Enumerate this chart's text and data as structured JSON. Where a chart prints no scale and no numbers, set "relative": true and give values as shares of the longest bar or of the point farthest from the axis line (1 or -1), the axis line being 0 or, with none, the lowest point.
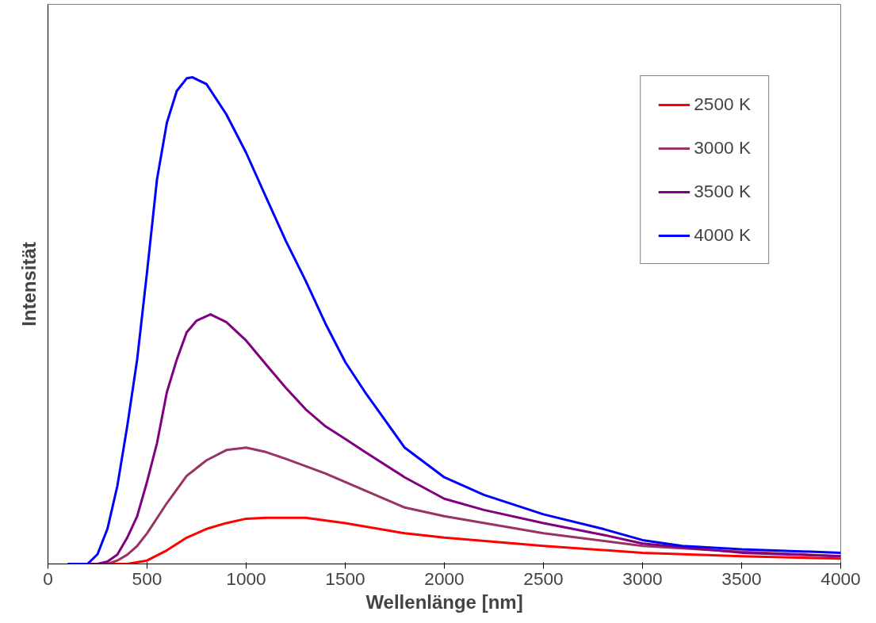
{
  "chart_data": {
    "type": "line",
    "relative": true,
    "xlabel": "Wellenlänge [nm]",
    "ylabel": "Intensität",
    "xlim": [
      0,
      4000
    ],
    "xticks": [
      0,
      500,
      1000,
      1500,
      2000,
      2500,
      3000,
      3500,
      4000
    ],
    "grid": false,
    "legend": "top right",
    "marker": "none",
    "line_style": "solid",
    "series": [
      {
        "name": "2500 K",
        "color": "#ff0000",
        "x": [
          100,
          400,
          500,
          600,
          700,
          800,
          900,
          1000,
          1100,
          1300,
          1500,
          1800,
          2000,
          2500,
          3000,
          3500,
          4000
        ],
        "values": [
          0,
          0,
          0.007,
          0.028,
          0.054,
          0.072,
          0.084,
          0.093,
          0.095,
          0.095,
          0.084,
          0.063,
          0.054,
          0.037,
          0.023,
          0.016,
          0.011
        ]
      },
      {
        "name": "3000 K",
        "color": "#993366",
        "x": [
          100,
          300,
          350,
          400,
          450,
          500,
          600,
          700,
          800,
          900,
          1000,
          1100,
          1200,
          1400,
          1600,
          1800,
          2000,
          2500,
          3000,
          3500,
          4000
        ],
        "values": [
          0,
          0,
          0.007,
          0.019,
          0.037,
          0.063,
          0.125,
          0.181,
          0.213,
          0.234,
          0.239,
          0.23,
          0.216,
          0.186,
          0.151,
          0.116,
          0.098,
          0.063,
          0.037,
          0.025,
          0.016
        ]
      },
      {
        "name": "3500 K",
        "color": "#800080",
        "x": [
          100,
          250,
          300,
          350,
          400,
          450,
          500,
          550,
          600,
          650,
          700,
          750,
          820,
          900,
          1000,
          1100,
          1200,
          1300,
          1400,
          1500,
          1600,
          1800,
          2000,
          2200,
          2500,
          2800,
          3000,
          3500,
          4000
        ],
        "values": [
          0,
          0,
          0.005,
          0.019,
          0.054,
          0.098,
          0.169,
          0.248,
          0.353,
          0.42,
          0.476,
          0.5,
          0.513,
          0.497,
          0.459,
          0.41,
          0.362,
          0.318,
          0.283,
          0.257,
          0.23,
          0.178,
          0.134,
          0.111,
          0.084,
          0.06,
          0.042,
          0.023,
          0.016
        ]
      },
      {
        "name": "4000 K",
        "color": "#0000ff",
        "x": [
          100,
          200,
          250,
          300,
          350,
          400,
          450,
          500,
          550,
          600,
          650,
          700,
          730,
          800,
          900,
          1000,
          1100,
          1200,
          1300,
          1400,
          1500,
          1600,
          1800,
          2000,
          2200,
          2500,
          2800,
          3000,
          3200,
          3500,
          4000
        ],
        "values": [
          0,
          0,
          0.02,
          0.072,
          0.16,
          0.283,
          0.42,
          0.6,
          0.79,
          0.907,
          0.972,
          0.998,
          1,
          0.986,
          0.924,
          0.845,
          0.754,
          0.664,
          0.582,
          0.494,
          0.415,
          0.353,
          0.239,
          0.178,
          0.142,
          0.102,
          0.072,
          0.049,
          0.037,
          0.03,
          0.023
        ]
      }
    ]
  }
}
